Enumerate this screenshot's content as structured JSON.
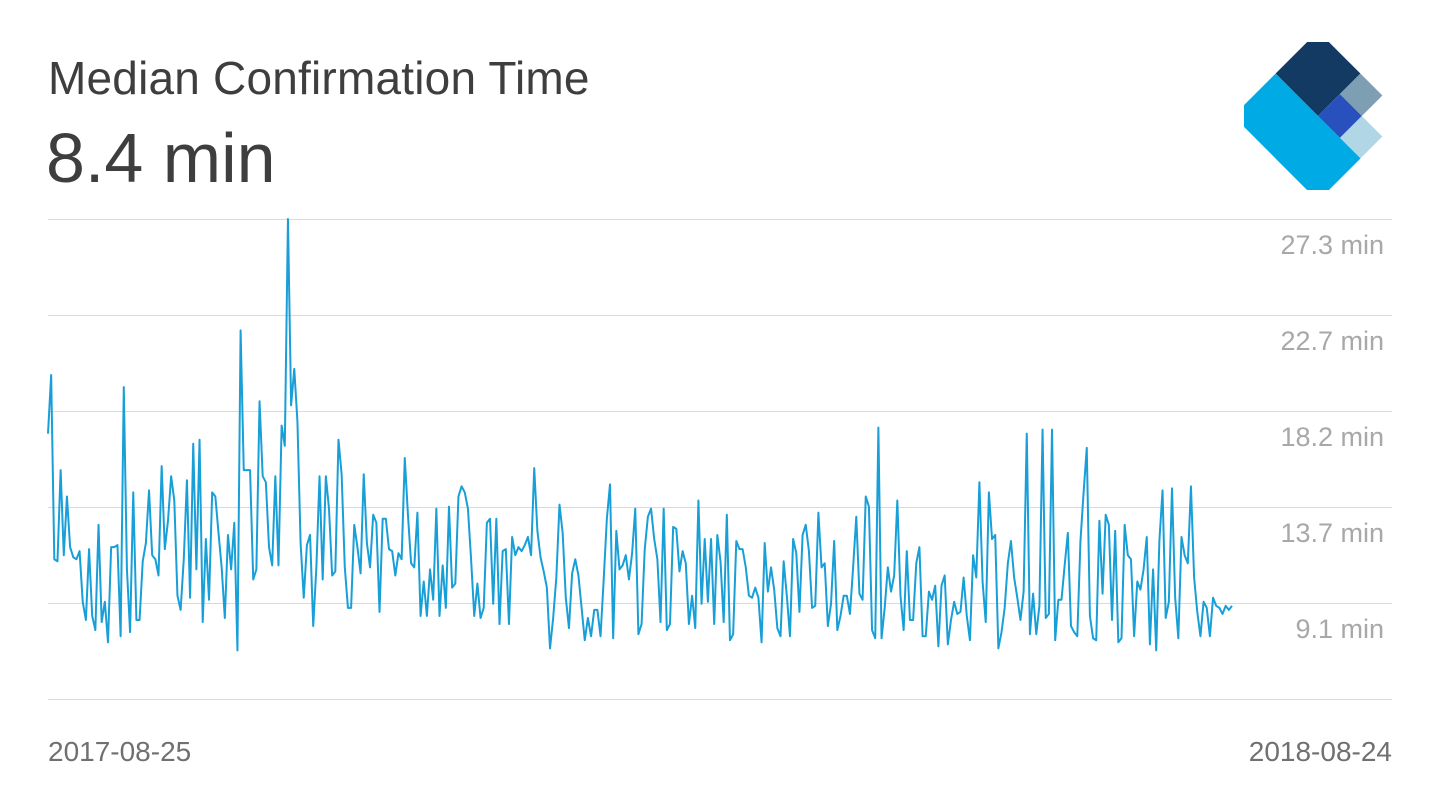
{
  "header": {
    "title": "Median Confirmation Time",
    "value": "8.4 min"
  },
  "colors": {
    "line": "#189FD7",
    "grid": "#DADADA",
    "text": "#3E3E3E",
    "tick_text": "#A8A8A8",
    "date_text": "#707070",
    "logo_dark": "#123A63",
    "logo_grey": "#7E9FB3",
    "logo_blue": "#2851BD",
    "logo_cyan": "#00AAE4",
    "logo_light": "#B1D6E6"
  },
  "x_axis": {
    "start_label": "2017-08-25",
    "end_label": "2018-08-24"
  },
  "chart_data": {
    "type": "line",
    "title": "Median Confirmation Time",
    "ylabel": "",
    "xlabel": "",
    "x_range": [
      "2017-08-25",
      "2018-08-24"
    ],
    "ylim": [
      4.5,
      28.2
    ],
    "y_ticks": [
      {
        "value": 27.3,
        "label": "27.3 min"
      },
      {
        "value": 22.7,
        "label": "22.7 min"
      },
      {
        "value": 18.2,
        "label": "18.2 min"
      },
      {
        "value": 13.7,
        "label": "13.7 min"
      },
      {
        "value": 9.1,
        "label": "9.1 min"
      }
    ],
    "grid": true,
    "series": [
      {
        "values": [
          17.6,
          20.5,
          11.4,
          11.3,
          15.8,
          11.6,
          14.5,
          12.0,
          11.5,
          11.4,
          11.8,
          9.3,
          8.4,
          11.9,
          8.6,
          7.9,
          13.1,
          8.3,
          9.3,
          7.3,
          12.0,
          12.0,
          12.1,
          7.6,
          19.9,
          10.9,
          7.8,
          14.7,
          8.4,
          8.4,
          11.3,
          12.2,
          14.8,
          11.6,
          11.4,
          10.6,
          16.0,
          11.9,
          13.3,
          15.5,
          14.3,
          9.6,
          8.9,
          11.4,
          15.3,
          9.5,
          17.1,
          10.9,
          17.3,
          8.3,
          12.4,
          9.4,
          14.7,
          14.5,
          12.7,
          11.0,
          8.5,
          12.6,
          10.9,
          13.2,
          6.9,
          22.7,
          15.8,
          15.8,
          15.8,
          10.4,
          10.9,
          19.2,
          15.5,
          15.2,
          12.0,
          11.1,
          15.5,
          11.1,
          18.0,
          17.0,
          28.2,
          19.0,
          20.8,
          18.2,
          12.2,
          9.5,
          12.1,
          12.6,
          8.1,
          11.0,
          15.5,
          10.4,
          15.5,
          13.9,
          10.6,
          10.8,
          17.3,
          15.6,
          11.0,
          9.0,
          9.0,
          13.1,
          12.0,
          10.7,
          15.6,
          12.2,
          11.0,
          13.6,
          13.2,
          8.8,
          13.4,
          13.4,
          11.9,
          11.8,
          10.6,
          11.7,
          11.4,
          16.4,
          13.6,
          11.2,
          11.0,
          13.7,
          8.6,
          10.3,
          8.6,
          10.9,
          9.4,
          13.9,
          8.6,
          11.1,
          9.0,
          14.0,
          10.0,
          10.2,
          14.5,
          15.0,
          14.7,
          13.9,
          11.4,
          8.6,
          10.2,
          8.5,
          9.0,
          13.2,
          13.4,
          9.2,
          13.4,
          8.2,
          11.8,
          11.9,
          8.2,
          12.5,
          11.6,
          12.0,
          11.8,
          12.1,
          12.5,
          11.6,
          15.9,
          12.8,
          11.5,
          10.8,
          10.0,
          7.0,
          8.5,
          10.5,
          14.1,
          12.7,
          9.5,
          8.0,
          10.7,
          11.4,
          10.6,
          9.0,
          7.4,
          8.5,
          7.6,
          8.9,
          8.9,
          7.6,
          10.4,
          13.4,
          15.1,
          7.5,
          12.8,
          10.9,
          11.1,
          11.6,
          10.4,
          11.7,
          13.9,
          7.7,
          8.2,
          11.9,
          13.5,
          13.9,
          12.4,
          11.4,
          8.3,
          13.9,
          7.9,
          8.2,
          13.0,
          12.9,
          10.8,
          11.8,
          11.2,
          8.2,
          9.6,
          8.0,
          14.3,
          9.2,
          12.4,
          9.3,
          12.4,
          8.2,
          12.6,
          11.3,
          8.3,
          13.6,
          7.4,
          7.7,
          12.3,
          11.9,
          11.9,
          11.0,
          9.6,
          9.5,
          10.0,
          9.5,
          7.3,
          12.2,
          9.8,
          11.0,
          9.9,
          8.0,
          7.6,
          11.3,
          9.6,
          7.6,
          12.4,
          11.7,
          8.8,
          12.6,
          13.1,
          11.8,
          9.0,
          9.1,
          13.7,
          11.0,
          11.2,
          8.1,
          9.2,
          12.3,
          7.9,
          8.6,
          9.6,
          9.6,
          8.7,
          11.0,
          13.5,
          9.7,
          9.4,
          14.5,
          14.0,
          7.9,
          7.5,
          17.9,
          7.5,
          9.0,
          11.0,
          9.8,
          10.6,
          14.3,
          9.6,
          7.9,
          11.8,
          8.4,
          8.4,
          11.2,
          12.0,
          7.6,
          7.6,
          9.8,
          9.4,
          10.1,
          7.1,
          10.1,
          10.6,
          7.2,
          8.4,
          9.3,
          8.7,
          8.8,
          10.5,
          8.6,
          7.4,
          11.6,
          10.5,
          15.2,
          10.3,
          8.3,
          14.7,
          12.4,
          12.6,
          7.0,
          7.8,
          9.0,
          11.2,
          12.3,
          10.5,
          9.5,
          8.4,
          9.8,
          17.6,
          7.7,
          9.7,
          7.7,
          9.1,
          17.8,
          8.5,
          8.7,
          17.8,
          7.4,
          9.4,
          9.4,
          11.1,
          12.7,
          8.1,
          7.8,
          7.6,
          12.3,
          14.7,
          16.9,
          8.6,
          7.5,
          7.4,
          13.3,
          9.7,
          13.6,
          13.1,
          8.4,
          12.8,
          7.3,
          7.5,
          13.1,
          11.6,
          11.4,
          7.6,
          10.3,
          9.9,
          10.9,
          12.5,
          7.2,
          10.9,
          6.9,
          12.3,
          14.8,
          8.5,
          9.3,
          14.9,
          9.5,
          7.5,
          12.5,
          11.6,
          11.2,
          15.0,
          10.5,
          8.8,
          7.6,
          9.3,
          9.0,
          7.6,
          9.5,
          9.1,
          9.0,
          8.7,
          9.1,
          8.9,
          9.1
        ]
      }
    ]
  }
}
